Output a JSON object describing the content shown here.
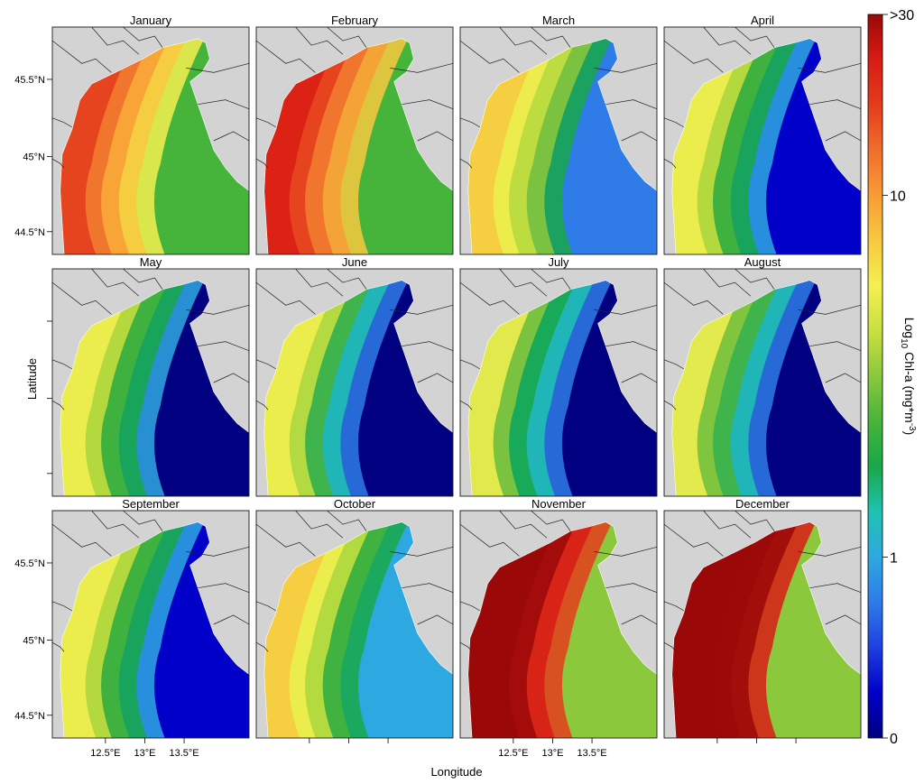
{
  "figure": {
    "x_axis_title": "Longitude",
    "y_axis_title": "Latitude",
    "x_ticks": [
      "12.5°E",
      "13°E",
      "13.5°E"
    ],
    "y_ticks": [
      "45.5°N",
      "45°N",
      "44.5°N"
    ]
  },
  "colorbar": {
    "title": "Log10 Chl-a (mg*m-3)",
    "title_base": "Log",
    "title_sub": "10",
    "title_mid": " Chl-a (mg*m",
    "title_sup": "-3",
    "title_end": ")",
    "tick_labels": [
      ">30",
      "10",
      "1",
      "0"
    ],
    "colors": [
      "#000080",
      "#0000c8",
      "#1e40e0",
      "#2f7be8",
      "#2ea8e0",
      "#1fc3b0",
      "#18a848",
      "#46b43a",
      "#8cc83c",
      "#c8e040",
      "#f4f050",
      "#f8c840",
      "#f89c36",
      "#f06e2c",
      "#e43c1c",
      "#d81c14",
      "#9a0808"
    ]
  },
  "panels": [
    {
      "month": "January",
      "level": 0.62,
      "offshore": 0.42
    },
    {
      "month": "February",
      "level": 0.66,
      "offshore": 0.44
    },
    {
      "month": "March",
      "level": 0.4,
      "offshore": 0.2
    },
    {
      "month": "April",
      "level": 0.3,
      "offshore": 0.05
    },
    {
      "month": "May",
      "level": 0.28,
      "offshore": 0.0
    },
    {
      "month": "June",
      "level": 0.26,
      "offshore": 0.0
    },
    {
      "month": "July",
      "level": 0.24,
      "offshore": 0.0
    },
    {
      "month": "August",
      "level": 0.25,
      "offshore": 0.03
    },
    {
      "month": "September",
      "level": 0.3,
      "offshore": 0.06
    },
    {
      "month": "October",
      "level": 0.4,
      "offshore": 0.22
    },
    {
      "month": "November",
      "level": 0.8,
      "offshore": 0.48
    },
    {
      "month": "December",
      "level": 0.86,
      "offshore": 0.5
    }
  ]
}
